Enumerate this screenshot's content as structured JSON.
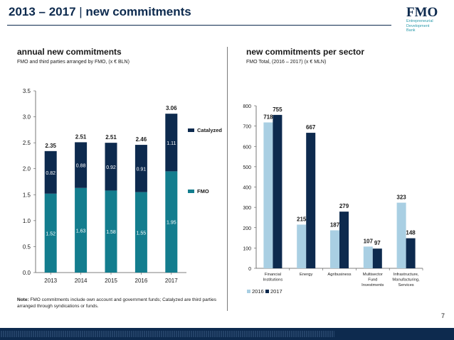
{
  "header": {
    "title_main": "2013 – 2017",
    "title_sep": " | ",
    "title_sub": "new commitments"
  },
  "logo": {
    "word": "FMO",
    "sub": [
      "Entrepreneurial",
      "Development",
      "Bank"
    ]
  },
  "left": {
    "title": "annual new commitments",
    "subtitle": "FMO and third parties arranged by FMO, (x € BLN)"
  },
  "right": {
    "title": "new commitments per sector",
    "subtitle": "FMO Total, (2016 – 2017) (x € MLN)"
  },
  "note": {
    "bold": "Note:",
    "text": " FMO commitments include own account and government funds; Catalyzed are third parties arranged through syndications or funds."
  },
  "page_number": "7",
  "colors": {
    "navy": "#0d2a4e",
    "teal": "#137d8e",
    "light_blue": "#a9cfe3"
  },
  "chart_data": [
    {
      "type": "bar",
      "stacked": true,
      "categories": [
        "2013",
        "2014",
        "2015",
        "2016",
        "2017"
      ],
      "series": [
        {
          "name": "FMO",
          "values": [
            1.52,
            1.63,
            1.58,
            1.55,
            1.95
          ],
          "labels": [
            "1.52",
            "1.63",
            "1.58",
            "1.55",
            "1.95"
          ],
          "color": "#137d8e"
        },
        {
          "name": "Catalyzed",
          "values": [
            0.82,
            0.88,
            0.92,
            0.91,
            1.11
          ],
          "labels": [
            "0.82",
            "0.88",
            "0.92",
            "0.91",
            "1.11"
          ],
          "color": "#0d2a4e"
        }
      ],
      "totals": [
        "2.35",
        "2.51",
        "2.51",
        "2.46",
        "3.06"
      ],
      "ylim": [
        0,
        3.5
      ],
      "yticks": [
        "0.0",
        "0.5",
        "1.0",
        "1.5",
        "2.0",
        "2.5",
        "3.0",
        "3.5"
      ],
      "legend": "right",
      "grid": false
    },
    {
      "type": "bar",
      "categories": [
        [
          "Financial",
          "Institutions"
        ],
        [
          "Energy"
        ],
        [
          "Agribusiness"
        ],
        [
          "Multisector",
          "Fund",
          "Investments"
        ],
        [
          "Infrastructure,",
          "Manufacturing,",
          "Services"
        ]
      ],
      "series": [
        {
          "name": "2016",
          "values": [
            718,
            215,
            187,
            107,
            323
          ],
          "labels": [
            "718",
            "215",
            "187",
            "107",
            "323"
          ],
          "color": "#a9cfe3"
        },
        {
          "name": "2017",
          "values": [
            755,
            667,
            279,
            97,
            148
          ],
          "labels": [
            "755",
            "667",
            "279",
            "97",
            "148"
          ],
          "color": "#0d2a4e"
        }
      ],
      "ylim": [
        0,
        800
      ],
      "yticks": [
        "0",
        "100",
        "200",
        "300",
        "400",
        "500",
        "600",
        "700",
        "800"
      ],
      "legend": "bottom-left",
      "grid": false
    }
  ]
}
